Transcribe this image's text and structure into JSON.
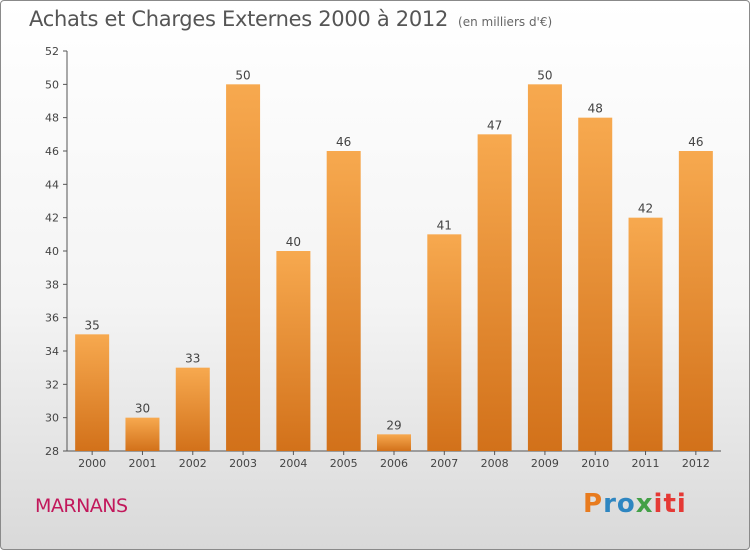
{
  "title": "Achats et Charges Externes 2000 à 2012",
  "subtitle": "(en milliers d'€)",
  "commune": "MARNANS",
  "logo": {
    "text": "Proxiti",
    "colors": [
      "#e87b1e",
      "#2e86c1",
      "#43a047",
      "#e53935"
    ]
  },
  "colors": {
    "bar_top": "#f7a94f",
    "bar_bottom": "#d2711a",
    "label": "#444444",
    "axis": "#555555"
  },
  "chart_data": {
    "type": "bar",
    "title": "Achats et Charges Externes 2000 à 2012",
    "subtitle": "(en milliers d'€)",
    "categories": [
      "2000",
      "2001",
      "2002",
      "2003",
      "2004",
      "2005",
      "2006",
      "2007",
      "2008",
      "2009",
      "2010",
      "2011",
      "2012"
    ],
    "values": [
      35,
      30,
      33,
      50,
      40,
      46,
      29,
      41,
      47,
      50,
      48,
      42,
      46
    ],
    "ylim": [
      28,
      52
    ],
    "yticks": [
      28,
      30,
      32,
      34,
      36,
      38,
      40,
      42,
      44,
      46,
      48,
      50,
      52
    ],
    "xlabel": "",
    "ylabel": "",
    "grid": false,
    "data_labels": true
  }
}
